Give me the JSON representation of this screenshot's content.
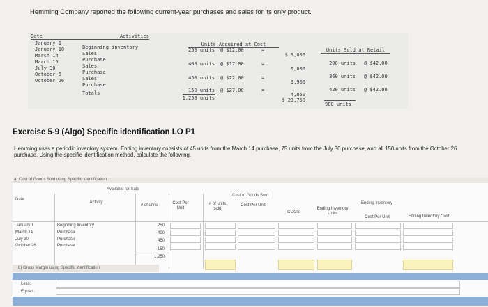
{
  "intro": "Hemming Company reported the following current-year purchases and sales for its only product.",
  "data_table": {
    "headers": {
      "date": "Date",
      "activities": "Activities",
      "units_acquired": "Units Acquired at Cost",
      "units_sold": "Units Sold at Retail"
    },
    "rows": [
      {
        "date": "January 1",
        "activity": "Beginning inventory",
        "units": "250 units",
        "cost": "@ $12.00",
        "eq": "=",
        "total": "$ 3,000",
        "sold_units": "",
        "retail": ""
      },
      {
        "date": "January 10",
        "activity": "Sales",
        "units": "",
        "cost": "",
        "eq": "",
        "total": "",
        "sold_units": "200 units",
        "retail": "@ $42.00"
      },
      {
        "date": "March 14",
        "activity": "Purchase",
        "units": "400 units",
        "cost": "@ $17.00",
        "eq": "=",
        "total": "6,800",
        "sold_units": "",
        "retail": ""
      },
      {
        "date": "March 15",
        "activity": "Sales",
        "units": "",
        "cost": "",
        "eq": "",
        "total": "",
        "sold_units": "360 units",
        "retail": "@ $42.00"
      },
      {
        "date": "July 30",
        "activity": "Purchase",
        "units": "450 units",
        "cost": "@ $22.00",
        "eq": "=",
        "total": "9,900",
        "sold_units": "",
        "retail": ""
      },
      {
        "date": "October 5",
        "activity": "Sales",
        "units": "",
        "cost": "",
        "eq": "",
        "total": "",
        "sold_units": "420 units",
        "retail": "@ $42.00"
      },
      {
        "date": "October 26",
        "activity": "Purchase",
        "units": "150 units",
        "cost": "@ $27.00",
        "eq": "=",
        "total": "4,050",
        "sold_units": "",
        "retail": ""
      }
    ],
    "totals": {
      "label": "Totals",
      "units": "1,250 units",
      "total": "$ 23,750",
      "sold_units": "980 units"
    }
  },
  "exercise_title": "Exercise 5-9 (Algo) Specific identification LO P1",
  "description": "Hemming uses a periodic inventory system. Ending inventory consists of 45 units from the March 14 purchase, 75 units from the July 30 purchase, and all 150 units from the October 26 purchase. Using the specific identification method, calculate the following.",
  "part_a": {
    "title": "a) Cost of Goods Sold using Specific Identification",
    "available_for_sale": "Available for Sale",
    "cogs_group": "Cost of Goods Sold",
    "ending_group": "Ending Inventory",
    "columns": {
      "date": "Date",
      "activity": "Activity",
      "num_units": "# of units",
      "cost_per_unit": "Cost Per Unit",
      "units_sold": "# of units sold",
      "cogs_cost_per_unit": "Cost Per Unit",
      "cogs": "COGS",
      "ending_units": "Ending Inventory Units",
      "ending_cost_per_unit": "Cost Per Unit",
      "ending_cost": "Ending Inventory Cost"
    },
    "rows": [
      {
        "date": "January 1",
        "activity": "Beginning Inventory",
        "units": "250"
      },
      {
        "date": "March 14",
        "activity": "Purchase",
        "units": "400"
      },
      {
        "date": "July 30",
        "activity": "Purchase",
        "units": "450"
      },
      {
        "date": "October 26",
        "activity": "Purchase",
        "units": "150"
      }
    ],
    "total_units": "1,250"
  },
  "part_b": {
    "title": "b) Gross Margin using Specific Identification",
    "rows": [
      "Less:",
      "Equals:"
    ]
  }
}
